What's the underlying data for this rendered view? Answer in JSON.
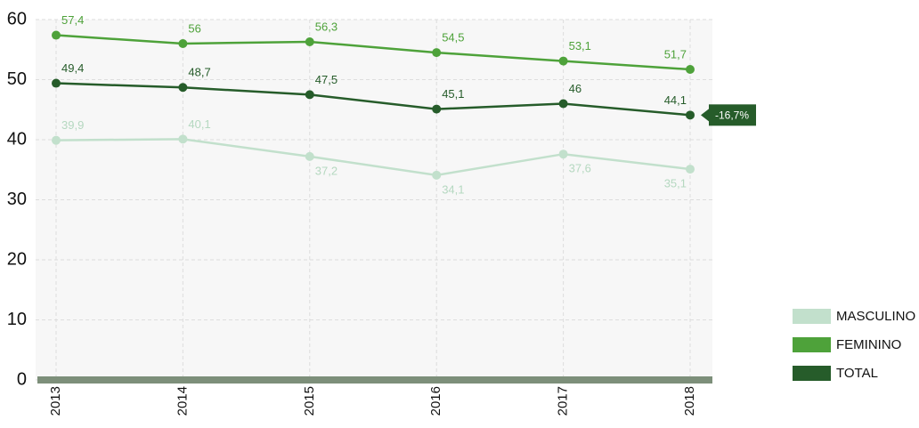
{
  "chart_data": {
    "type": "line",
    "categories": [
      "2013",
      "2014",
      "2015",
      "2016",
      "2017",
      "2018"
    ],
    "series": [
      {
        "name": "MASCULINO",
        "color": "#c2e0cc",
        "values": [
          39.9,
          40.1,
          37.2,
          34.1,
          37.6,
          35.1
        ],
        "value_labels": [
          "39,9",
          "40,1",
          "37,2",
          "34,1",
          "37,6",
          "35,1"
        ]
      },
      {
        "name": "FEMININO",
        "color": "#4ea23a",
        "values": [
          57.4,
          56,
          56.3,
          54.5,
          53.1,
          51.7
        ],
        "value_labels": [
          "57,4",
          "56",
          "56,3",
          "54,5",
          "53,1",
          "51,7"
        ]
      },
      {
        "name": "TOTAL",
        "color": "#265c2a",
        "values": [
          49.4,
          48.7,
          47.5,
          45.1,
          46,
          44.1
        ],
        "value_labels": [
          "49,4",
          "48,7",
          "47,5",
          "45,1",
          "46",
          "44,1"
        ]
      }
    ],
    "annotation": "-16,7%",
    "ylim": [
      0,
      60
    ],
    "yticks": [
      0,
      10,
      20,
      30,
      40,
      50,
      60
    ],
    "grid": true,
    "legend": "lower right"
  }
}
